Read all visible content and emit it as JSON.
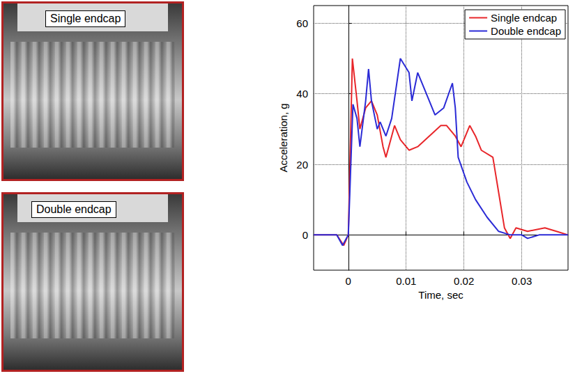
{
  "chart_data": {
    "type": "line",
    "xlabel": "Time, sec",
    "ylabel": "Acceleration, g",
    "xlim": [
      -0.006,
      0.038
    ],
    "xticks": [
      0,
      0.01,
      0.02,
      0.03
    ],
    "ylim": [
      -10,
      65
    ],
    "yticks": [
      0,
      20,
      40,
      60
    ],
    "grid": true,
    "legend": "upper right",
    "line_style": "solid",
    "series": [
      {
        "name": "Single endcap",
        "color": "#e8262a",
        "x": [
          -0.006,
          -0.002,
          -0.0008,
          0,
          0.0007,
          0.0015,
          0.002,
          0.003,
          0.004,
          0.005,
          0.006,
          0.0065,
          0.0075,
          0.008,
          0.009,
          0.0105,
          0.012,
          0.014,
          0.016,
          0.017,
          0.0185,
          0.0195,
          0.021,
          0.022,
          0.023,
          0.025,
          0.026,
          0.027,
          0.028,
          0.029,
          0.031,
          0.034,
          0.036,
          0.038
        ],
        "values": [
          0,
          0,
          -3,
          0,
          50,
          38,
          30,
          36,
          38,
          34,
          25,
          22,
          28,
          31,
          27,
          24,
          25,
          28,
          31,
          31,
          28,
          25,
          31,
          28,
          24,
          22,
          12,
          2,
          -1,
          2,
          1,
          2,
          1,
          0
        ]
      },
      {
        "name": "Double endcap",
        "color": "#2b2bd6",
        "x": [
          -0.006,
          -0.002,
          -0.001,
          0,
          0.0008,
          0.0015,
          0.002,
          0.003,
          0.0035,
          0.004,
          0.005,
          0.0055,
          0.0065,
          0.0075,
          0.009,
          0.0105,
          0.011,
          0.012,
          0.0135,
          0.015,
          0.0165,
          0.018,
          0.0185,
          0.019,
          0.0205,
          0.022,
          0.024,
          0.026,
          0.028,
          0.03,
          0.031,
          0.033,
          0.038
        ],
        "values": [
          0,
          0,
          -3,
          0,
          37,
          33,
          25,
          38,
          47,
          38,
          30,
          32,
          28,
          33,
          50,
          46,
          38,
          46,
          40,
          34,
          36,
          43,
          36,
          22,
          15,
          10,
          5,
          1,
          0,
          0,
          -1,
          0,
          0
        ]
      }
    ]
  },
  "photos": [
    {
      "label": "Single endcap"
    },
    {
      "label": "Double endcap"
    }
  ]
}
